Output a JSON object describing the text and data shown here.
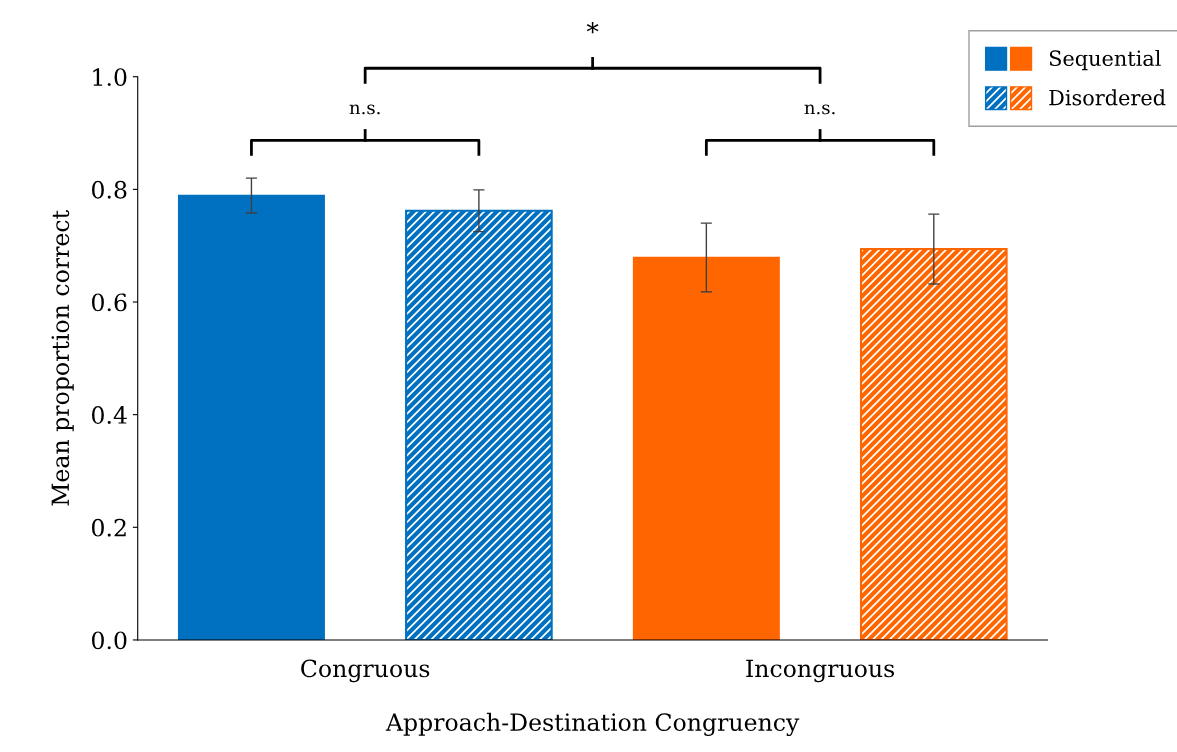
{
  "chart_data": {
    "type": "bar",
    "xlabel": "Approach-Destination Congruency",
    "ylabel": "Mean proportion correct",
    "categories": [
      "Congruous",
      "Incongruous"
    ],
    "series": [
      {
        "name": "Sequential",
        "colors": [
          "#0070c0",
          "#ff6600"
        ],
        "values": [
          0.789,
          0.679
        ],
        "errors": [
          0.031,
          0.061
        ]
      },
      {
        "name": "Disordered",
        "colors": [
          "#0070c0",
          "#ff6600"
        ],
        "values": [
          0.762,
          0.694
        ],
        "errors": [
          0.037,
          0.062
        ]
      }
    ],
    "ylim": [
      0,
      1
    ],
    "yticks": [
      {
        "value": 0,
        "label": "0.0"
      },
      {
        "value": 0.2,
        "label": "0.2"
      },
      {
        "value": 0.4,
        "label": "0.4"
      },
      {
        "value": 0.6,
        "label": "0.6"
      },
      {
        "value": 0.8,
        "label": "0.8"
      },
      {
        "value": 1,
        "label": "1.0"
      }
    ],
    "annotations": [
      "*",
      "n.s.",
      "n.s."
    ],
    "grid": false,
    "legend": "top right"
  }
}
